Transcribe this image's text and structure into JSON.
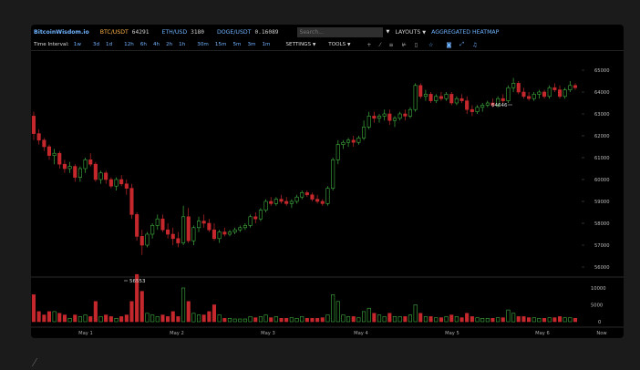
{
  "header": {
    "logo": "BitcoinWisdom.io",
    "tickers": [
      {
        "symbol": "BTC/USDT",
        "price": "64291"
      },
      {
        "symbol": "ETH/USD",
        "price": "3180"
      },
      {
        "symbol": "DOGE/USDT",
        "price": "0.16089"
      }
    ],
    "search_placeholder": "Search...",
    "layouts_label": "LAYOUTS",
    "heatmap_label": "AGGREGATED HEATMAP"
  },
  "toolbar": {
    "interval_label": "Time Interval:",
    "intervals": [
      "1w",
      "3d",
      "1d",
      "12h",
      "6h",
      "4h",
      "2h",
      "1h",
      "30m",
      "15m",
      "5m",
      "3m",
      "1m"
    ],
    "settings_label": "SETTINGS",
    "tools_label": "TOOLS",
    "icons": [
      "crosshair-icon",
      "line-icon",
      "horizontal-lines-icon",
      "fib-icon",
      "trash-icon",
      "star-icon",
      "camera-icon",
      "fullscreen-icon",
      "bell-icon"
    ]
  },
  "chart_data": {
    "type": "candlestick",
    "price_ticks": [
      56000,
      57000,
      58000,
      59000,
      60000,
      61000,
      62000,
      63000,
      64000,
      65000
    ],
    "volume_ticks": [
      0,
      5000,
      10000
    ],
    "x_labels": [
      "May 1",
      "May 2",
      "May 3",
      "May 4",
      "May 5",
      "May 6",
      "Now"
    ],
    "high_annotation": "64646",
    "low_annotation": "56553",
    "bull_color": "#3fae3f",
    "bear_color": "#c4282c",
    "candles": [
      [
        62900,
        63100,
        61800,
        62100,
        8000
      ],
      [
        62100,
        62300,
        61600,
        61800,
        3000
      ],
      [
        61800,
        61900,
        61300,
        61500,
        2000
      ],
      [
        61500,
        61600,
        60900,
        61100,
        3000
      ],
      [
        61100,
        61400,
        60700,
        61200,
        3000
      ],
      [
        61200,
        61300,
        60500,
        60700,
        2500
      ],
      [
        60700,
        60900,
        60300,
        60500,
        2000
      ],
      [
        60500,
        60800,
        60300,
        60600,
        1000
      ],
      [
        60600,
        60700,
        59900,
        60100,
        2000
      ],
      [
        60100,
        60600,
        59900,
        60500,
        1500
      ],
      [
        60500,
        61000,
        60300,
        60900,
        2000
      ],
      [
        60900,
        61200,
        60600,
        60700,
        1500
      ],
      [
        60700,
        60800,
        59900,
        60000,
        6000
      ],
      [
        60000,
        60400,
        59800,
        60300,
        1500
      ],
      [
        60300,
        60400,
        59800,
        60000,
        2000
      ],
      [
        60000,
        60100,
        59600,
        59700,
        1500
      ],
      [
        59700,
        60100,
        59500,
        60000,
        1000
      ],
      [
        60000,
        60200,
        59700,
        59800,
        1500
      ],
      [
        59800,
        60000,
        59300,
        59600,
        2000
      ],
      [
        59600,
        59800,
        58200,
        58400,
        6000
      ],
      [
        58400,
        58500,
        57200,
        57400,
        14000
      ],
      [
        57400,
        57700,
        56553,
        57000,
        9000
      ],
      [
        57000,
        57600,
        56900,
        57500,
        2500
      ],
      [
        57500,
        58000,
        57300,
        57900,
        2000
      ],
      [
        57900,
        58400,
        57700,
        58200,
        1500
      ],
      [
        58200,
        58400,
        57600,
        57700,
        2000
      ],
      [
        57700,
        58000,
        57300,
        57500,
        1500
      ],
      [
        57500,
        57800,
        57000,
        57300,
        3000
      ],
      [
        57300,
        57600,
        56900,
        57100,
        1500
      ],
      [
        57100,
        58800,
        57000,
        58300,
        10000
      ],
      [
        58300,
        58700,
        57100,
        57200,
        6000
      ],
      [
        57200,
        57900,
        57000,
        57800,
        2500
      ],
      [
        57800,
        58300,
        57600,
        58100,
        2000
      ],
      [
        58100,
        58400,
        57800,
        58000,
        2000
      ],
      [
        58000,
        58200,
        57600,
        57700,
        3000
      ],
      [
        57700,
        58000,
        57200,
        57300,
        5000
      ],
      [
        57300,
        57700,
        57100,
        57600,
        2000
      ],
      [
        57600,
        57800,
        57400,
        57500,
        1000
      ],
      [
        57500,
        57700,
        57400,
        57600,
        1000
      ],
      [
        57600,
        57800,
        57500,
        57700,
        800
      ],
      [
        57700,
        57900,
        57600,
        57800,
        800
      ],
      [
        57800,
        58000,
        57700,
        57900,
        800
      ],
      [
        57900,
        58400,
        57800,
        58300,
        1500
      ],
      [
        58300,
        58500,
        58000,
        58200,
        1200
      ],
      [
        58200,
        58700,
        58100,
        58600,
        1500
      ],
      [
        58600,
        59100,
        58500,
        59000,
        2000
      ],
      [
        59000,
        59200,
        58800,
        58900,
        1200
      ],
      [
        58900,
        59200,
        58800,
        59100,
        1500
      ],
      [
        59100,
        59300,
        58900,
        59000,
        1000
      ],
      [
        59000,
        59200,
        58800,
        58900,
        1000
      ],
      [
        58900,
        59100,
        58700,
        59000,
        1200
      ],
      [
        59000,
        59300,
        58900,
        59200,
        1000
      ],
      [
        59200,
        59500,
        59100,
        59400,
        1500
      ],
      [
        59400,
        59500,
        59200,
        59300,
        1000
      ],
      [
        59300,
        59400,
        59000,
        59100,
        1000
      ],
      [
        59100,
        59300,
        58900,
        59000,
        1000
      ],
      [
        59000,
        59100,
        58800,
        58900,
        1200
      ],
      [
        58900,
        59700,
        58800,
        59600,
        2000
      ],
      [
        59600,
        61000,
        59500,
        60900,
        8000
      ],
      [
        60900,
        61800,
        60700,
        61600,
        6000
      ],
      [
        61600,
        61800,
        61400,
        61700,
        2000
      ],
      [
        61700,
        61900,
        61500,
        61800,
        1500
      ],
      [
        61800,
        62000,
        61500,
        61700,
        1500
      ],
      [
        61700,
        62000,
        61600,
        61900,
        1200
      ],
      [
        61900,
        62700,
        61800,
        62400,
        3000
      ],
      [
        62400,
        63100,
        62300,
        62900,
        4000
      ],
      [
        62900,
        63100,
        62600,
        62800,
        2500
      ],
      [
        62800,
        63000,
        62600,
        62900,
        2000
      ],
      [
        62900,
        63200,
        62700,
        63000,
        1500
      ],
      [
        63000,
        63200,
        62500,
        62700,
        2500
      ],
      [
        62700,
        62900,
        62400,
        62800,
        1500
      ],
      [
        62800,
        63100,
        62700,
        63000,
        1500
      ],
      [
        63000,
        63200,
        62700,
        62900,
        1500
      ],
      [
        62900,
        63300,
        62800,
        63200,
        2000
      ],
      [
        63200,
        64400,
        63100,
        64300,
        5000
      ],
      [
        64300,
        64400,
        63700,
        63800,
        2500
      ],
      [
        63800,
        64100,
        63600,
        63900,
        1500
      ],
      [
        63900,
        64000,
        63500,
        63600,
        1500
      ],
      [
        63600,
        63900,
        63500,
        63800,
        1200
      ],
      [
        63800,
        64000,
        63600,
        63700,
        1200
      ],
      [
        63700,
        64000,
        63600,
        63900,
        1500
      ],
      [
        63900,
        64000,
        63400,
        63500,
        2000
      ],
      [
        63500,
        63800,
        63400,
        63700,
        1500
      ],
      [
        63700,
        63900,
        63500,
        63600,
        1200
      ],
      [
        63600,
        63800,
        63000,
        63200,
        2500
      ],
      [
        63200,
        63400,
        62900,
        63100,
        1500
      ],
      [
        63100,
        63400,
        63000,
        63300,
        1200
      ],
      [
        63300,
        63500,
        63100,
        63400,
        1000
      ],
      [
        63400,
        63600,
        63300,
        63500,
        1000
      ],
      [
        63500,
        63700,
        63300,
        63400,
        1000
      ],
      [
        63400,
        63800,
        63300,
        63700,
        1200
      ],
      [
        63700,
        63900,
        63500,
        63600,
        1200
      ],
      [
        63600,
        64300,
        63500,
        64200,
        3500
      ],
      [
        64200,
        64646,
        64000,
        64400,
        2500
      ],
      [
        64400,
        64500,
        63900,
        64000,
        1500
      ],
      [
        64000,
        64200,
        63700,
        63800,
        1500
      ],
      [
        63800,
        64000,
        63600,
        63700,
        1200
      ],
      [
        63700,
        64000,
        63600,
        63900,
        1200
      ],
      [
        63900,
        64100,
        63700,
        64000,
        1000
      ],
      [
        64000,
        64100,
        63700,
        63800,
        1000
      ],
      [
        63800,
        64300,
        63700,
        64200,
        1200
      ],
      [
        64200,
        64400,
        64000,
        64100,
        1200
      ],
      [
        64100,
        64300,
        63700,
        63800,
        1500
      ],
      [
        63800,
        64200,
        63700,
        64100,
        1200
      ],
      [
        64100,
        64500,
        64000,
        64300,
        1200
      ],
      [
        64300,
        64400,
        64100,
        64200,
        1000
      ]
    ]
  }
}
